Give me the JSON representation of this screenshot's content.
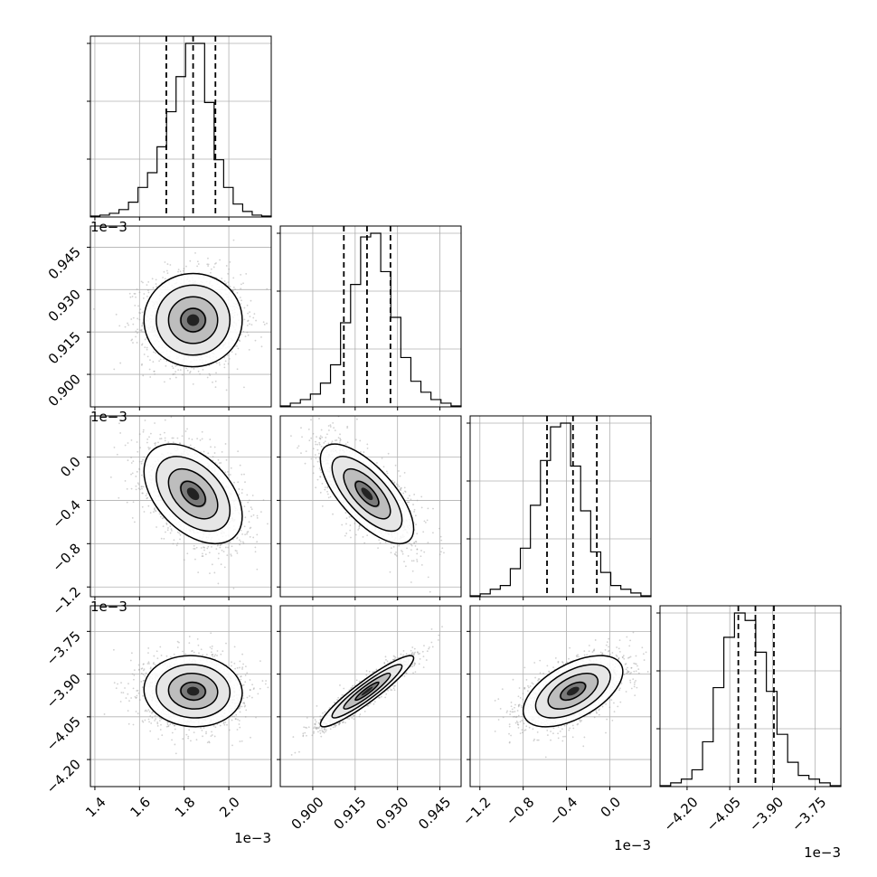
{
  "chart_data": {
    "type": "corner",
    "parameters": [
      {
        "range": [
          1.38,
          2.19
        ],
        "ticks": [
          1.4,
          1.6,
          1.8,
          2.0
        ],
        "tick_labels": [
          "1.4",
          "1.6",
          "1.8",
          "2.0"
        ],
        "offset_label": "1e−3",
        "quantiles": [
          1.72,
          1.84,
          1.94
        ],
        "hist_weights": [
          0.5,
          1,
          2,
          4,
          8,
          16,
          24,
          38,
          57,
          76,
          94,
          94,
          62,
          31,
          16,
          7,
          3,
          1,
          0.5
        ]
      },
      {
        "range": [
          0.8885,
          0.9525
        ],
        "ticks": [
          0.9,
          0.915,
          0.93,
          0.945
        ],
        "tick_labels": [
          "0.900",
          "0.915",
          "0.930",
          "0.945"
        ],
        "offset_label": "1e−3",
        "quantiles": [
          0.911,
          0.9192,
          0.9275
        ],
        "hist_weights": [
          0.5,
          2,
          4,
          7,
          13,
          23,
          46,
          67,
          93,
          95,
          74,
          49,
          27,
          14,
          8,
          4,
          2,
          0.5
        ]
      },
      {
        "range": [
          -1.29,
          0.38
        ],
        "ticks": [
          -1.2,
          -0.8,
          -0.4,
          0.0
        ],
        "tick_labels": [
          "−1.2",
          "−0.8",
          "−0.4",
          "0.0"
        ],
        "offset_label": "1e−3",
        "quantiles": [
          -0.58,
          -0.34,
          -0.12
        ],
        "hist_weights": [
          0.5,
          1.5,
          4,
          6,
          15,
          26,
          49,
          73,
          91,
          93,
          70,
          46,
          24,
          13,
          6,
          4,
          2,
          0.5
        ]
      },
      {
        "range": [
          -4.295,
          -3.66
        ],
        "ticks": [
          -4.2,
          -4.05,
          -3.9,
          -3.75
        ],
        "tick_labels": [
          "−4.20",
          "−4.05",
          "−3.90",
          "−3.75"
        ],
        "offset_label": "1e−3",
        "quantiles": [
          -4.02,
          -3.96,
          -3.895
        ],
        "hist_weights": [
          0.5,
          2,
          4,
          9,
          24,
          53,
          80,
          93,
          89,
          72,
          51,
          28,
          13,
          6,
          4,
          2,
          0.5
        ]
      }
    ],
    "pairs": [
      {
        "x": 0,
        "y": 1,
        "corr": 0.0
      },
      {
        "x": 0,
        "y": 2,
        "corr": -0.45
      },
      {
        "x": 0,
        "y": 3,
        "corr": -0.05
      },
      {
        "x": 1,
        "y": 2,
        "corr": -0.7
      },
      {
        "x": 1,
        "y": 3,
        "corr": 0.93
      },
      {
        "x": 2,
        "y": 3,
        "corr": 0.55
      }
    ],
    "grid": true,
    "colors": {
      "line": "#000000",
      "scatter": "#9a9a9a",
      "grid": "#b0b0b0"
    }
  }
}
